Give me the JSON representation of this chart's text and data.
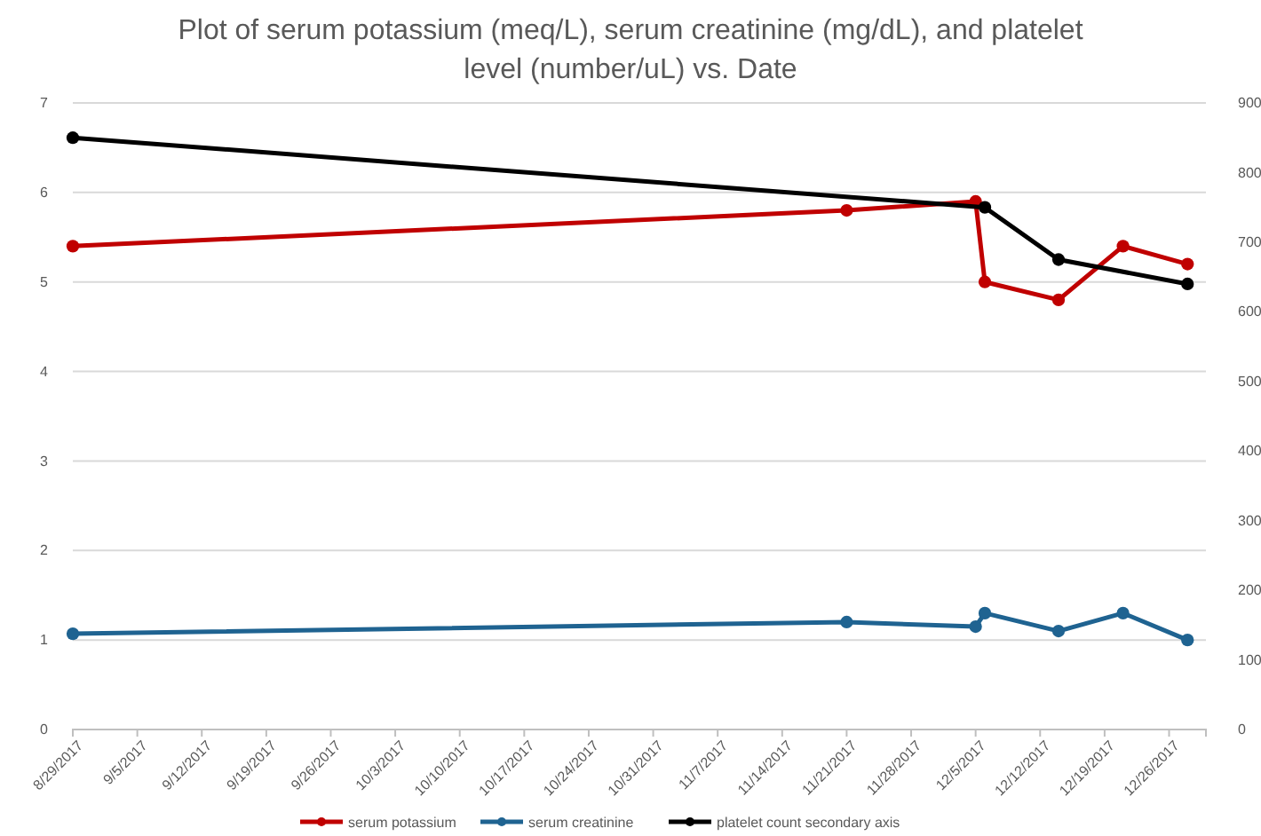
{
  "chart_data": {
    "type": "line",
    "title": "Plot of serum potassium (meq/L), serum creatinine (mg/dL), and platelet level (number/uL) vs. Date",
    "x": [
      "2017-08-29",
      "2017-11-21",
      "2017-12-05",
      "2017-12-06",
      "2017-12-14",
      "2017-12-21",
      "2017-12-28"
    ],
    "series": [
      {
        "name": "serum potassium",
        "color": "#c00000",
        "values": [
          5.4,
          5.8,
          5.9,
          5.0,
          4.8,
          5.4,
          5.2
        ]
      },
      {
        "name": "serum creatinine",
        "color": "#1f6391",
        "values": [
          1.07,
          1.2,
          1.15,
          1.3,
          1.1,
          1.3,
          1.0
        ]
      },
      {
        "name": "platelet count secondary axis",
        "color": "#000000",
        "axis": "y2",
        "x": [
          "2017-08-29",
          "2017-12-06",
          "2017-12-14",
          "2017-12-28"
        ],
        "values": [
          850,
          750,
          675,
          640
        ]
      }
    ],
    "xlim": [
      "2017-08-29",
      "2017-12-30"
    ],
    "xticks": [
      {
        "value": "2017-08-29",
        "label": "8/29/2017"
      },
      {
        "value": "2017-09-05",
        "label": "9/5/2017"
      },
      {
        "value": "2017-09-12",
        "label": "9/12/2017"
      },
      {
        "value": "2017-09-19",
        "label": "9/19/2017"
      },
      {
        "value": "2017-09-26",
        "label": "9/26/2017"
      },
      {
        "value": "2017-10-03",
        "label": "10/3/2017"
      },
      {
        "value": "2017-10-10",
        "label": "10/10/2017"
      },
      {
        "value": "2017-10-17",
        "label": "10/17/2017"
      },
      {
        "value": "2017-10-24",
        "label": "10/24/2017"
      },
      {
        "value": "2017-10-31",
        "label": "10/31/2017"
      },
      {
        "value": "2017-11-07",
        "label": "11/7/2017"
      },
      {
        "value": "2017-11-14",
        "label": "11/14/2017"
      },
      {
        "value": "2017-11-21",
        "label": "11/21/2017"
      },
      {
        "value": "2017-11-28",
        "label": "11/28/2017"
      },
      {
        "value": "2017-12-05",
        "label": "12/5/2017"
      },
      {
        "value": "2017-12-12",
        "label": "12/12/2017"
      },
      {
        "value": "2017-12-19",
        "label": "12/19/2017"
      },
      {
        "value": "2017-12-26",
        "label": "12/26/2017"
      }
    ],
    "ylim": [
      0,
      7
    ],
    "yticks": [
      0,
      1,
      2,
      3,
      4,
      5,
      6,
      7
    ],
    "y2lim": [
      0,
      900
    ],
    "y2ticks": [
      0,
      100,
      200,
      300,
      400,
      500,
      600,
      700,
      800,
      900
    ],
    "grid": "y",
    "legend": "bottom",
    "marker": "circle",
    "line_style": "solid"
  }
}
